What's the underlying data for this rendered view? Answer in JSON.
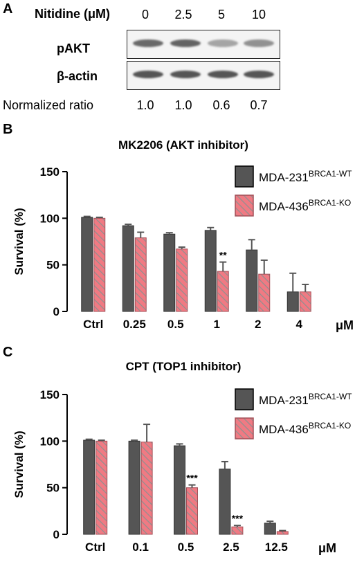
{
  "panel_a": {
    "letter": "A",
    "treatment_label": "Nitidine (μM)",
    "doses": [
      "0",
      "2.5",
      "5",
      "10"
    ],
    "blots": [
      {
        "label": "pAKT",
        "intensities": [
          0.75,
          0.78,
          0.45,
          0.55
        ]
      },
      {
        "label": "β-actin",
        "intensities": [
          0.85,
          0.85,
          0.85,
          0.85
        ]
      }
    ],
    "normalized_label": "Normalized ratio",
    "normalized_values": [
      "1.0",
      "1.0",
      "0.6",
      "0.7"
    ]
  },
  "colors": {
    "wt": "#555555",
    "ko": "#f07a83",
    "ko_stripe": "#909090",
    "error": "#555555"
  },
  "legend": [
    {
      "base": "MDA-231",
      "sup": "BRCA1-WT"
    },
    {
      "base": "MDA-436",
      "sup": "BRCA1-KO"
    }
  ],
  "chart_data": [
    {
      "panel": "B",
      "type": "bar",
      "title": "MK2206 (AKT inhibitor)",
      "ylabel": "Survival (%)",
      "xunit": "μM",
      "ylim": [
        0,
        150
      ],
      "yticks": [
        "0",
        "50",
        "100",
        "150"
      ],
      "categories": [
        "Ctrl",
        "0.25",
        "0.5",
        "1",
        "2",
        "4"
      ],
      "legend_position": "top-right",
      "series": [
        {
          "name": "MDA-231BRCA1-WT",
          "values": [
            101,
            92,
            83,
            87,
            66,
            21
          ],
          "errors": [
            1,
            1.5,
            1.5,
            3,
            11,
            20
          ]
        },
        {
          "name": "MDA-436BRCA1-KO",
          "values": [
            100,
            79,
            67,
            43,
            40,
            21
          ],
          "errors": [
            1,
            6,
            2,
            10,
            15,
            8
          ]
        }
      ],
      "annotations": [
        {
          "category": "1",
          "series": 1,
          "text": "**"
        }
      ]
    },
    {
      "panel": "C",
      "type": "bar",
      "title": "CPT (TOP1 inhibitor)",
      "ylabel": "Survival (%)",
      "xunit": "μM",
      "ylim": [
        0,
        150
      ],
      "yticks": [
        "0",
        "50",
        "100",
        "150"
      ],
      "categories": [
        "Ctrl",
        "0.1",
        "0.5",
        "2.5",
        "12.5"
      ],
      "legend_position": "top-right",
      "series": [
        {
          "name": "MDA-231BRCA1-WT",
          "values": [
            101,
            100,
            95,
            70,
            12
          ],
          "errors": [
            1,
            1,
            2,
            8,
            2
          ]
        },
        {
          "name": "MDA-436BRCA1-KO",
          "values": [
            100,
            99,
            50,
            8,
            3
          ],
          "errors": [
            1,
            19,
            3,
            1.5,
            1
          ]
        }
      ],
      "annotations": [
        {
          "category": "0.5",
          "series": 1,
          "text": "***"
        },
        {
          "category": "2.5",
          "series": 1,
          "text": "***"
        }
      ]
    }
  ]
}
